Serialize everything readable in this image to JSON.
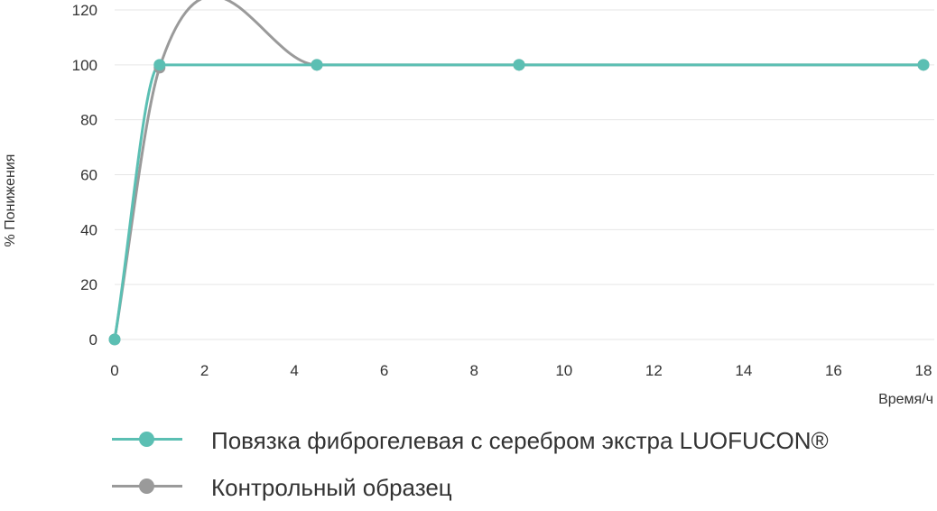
{
  "chart_data": {
    "type": "line",
    "title": "",
    "ylabel": "% Понижения",
    "xlabel": "Время/ч",
    "xlim": [
      0,
      18
    ],
    "ylim": [
      0,
      120
    ],
    "x_ticks": [
      "0",
      "2",
      "4",
      "6",
      "8",
      "10",
      "12",
      "14",
      "16",
      "18"
    ],
    "y_ticks": [
      "0",
      "20",
      "40",
      "60",
      "80",
      "100",
      "120"
    ],
    "grid": true,
    "legend_position": "bottom-left",
    "series": [
      {
        "name": "Повязка фиброгелевая с серебром экстра LUOFUCON®",
        "color": "#5bbfb3",
        "x": [
          0,
          1,
          4.5,
          9,
          18
        ],
        "y": [
          0,
          100,
          100,
          100,
          100
        ]
      },
      {
        "name": "Контрольный образец",
        "color": "#9a9a9a",
        "x": [
          0,
          1,
          4.5,
          9,
          18
        ],
        "y": [
          0,
          99,
          100,
          100,
          100
        ]
      }
    ]
  }
}
